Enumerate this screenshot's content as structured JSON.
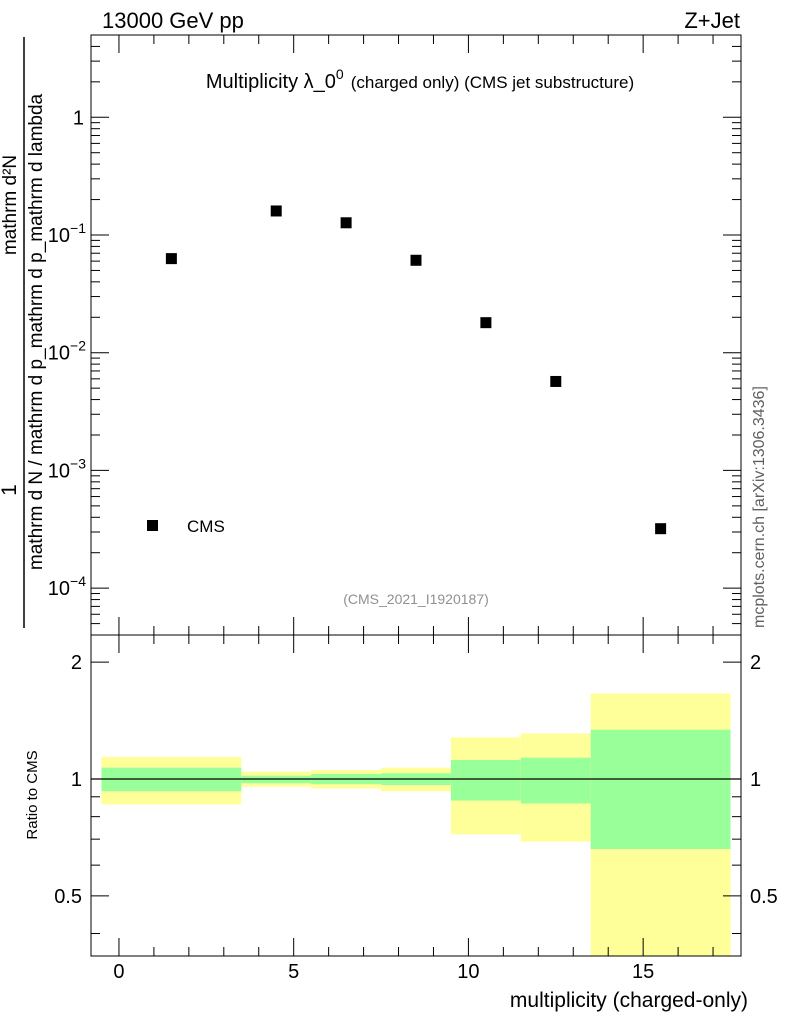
{
  "header": {
    "energy_label": "13000 GeV pp",
    "process_label": "Z+Jet"
  },
  "watermark": "mcplots.cern.ch [arXiv:1306.3436]",
  "chart_data": [
    {
      "type": "scatter",
      "title_main": "Multiplicity λ_0",
      "title_sup": "0",
      "title_tail": "(charged only) (CMS jet substructure)",
      "analysis_id": "(CMS_2021_I1920187)",
      "ylabel_num": "1",
      "ylabel_den": "mathrm d N / mathrm d p_mathrm d p_mathrm d lambda",
      "ylabel_num2": "mathrm d²N",
      "yscale": "log",
      "xlim": [
        -0.8,
        17.8
      ],
      "ylim": [
        4e-05,
        5
      ],
      "yticks": [
        {
          "value": 1,
          "mant": "1",
          "exp": ""
        },
        {
          "value": 0.1,
          "mant": "10",
          "exp": "−1"
        },
        {
          "value": 0.01,
          "mant": "10",
          "exp": "−2"
        },
        {
          "value": 0.001,
          "mant": "10",
          "exp": "−3"
        },
        {
          "value": 0.0001,
          "mant": "10",
          "exp": "−4"
        }
      ],
      "legend": {
        "label": "CMS",
        "placement": "bottom-left"
      },
      "series": [
        {
          "name": "CMS",
          "x": [
            1.5,
            4.5,
            6.5,
            8.5,
            10.5,
            12.5,
            15.5
          ],
          "y": [
            0.063,
            0.16,
            0.127,
            0.061,
            0.018,
            0.0057,
            0.00032
          ]
        }
      ]
    },
    {
      "type": "area",
      "ylabel": "Ratio to CMS",
      "xlabel": "multiplicity (charged-only)",
      "yscale": "log",
      "xlim": [
        -0.8,
        17.8
      ],
      "ylim": [
        0.35,
        2.35
      ],
      "yticks": [
        {
          "value": 0.5,
          "label": "0.5"
        },
        {
          "value": 1,
          "label": "1"
        },
        {
          "value": 2,
          "label": "2"
        }
      ],
      "xticks": [
        0,
        5,
        10,
        15
      ],
      "reference_line": 1,
      "bands": [
        {
          "xlo": -0.5,
          "xhi": 3.5,
          "y1_lo": 0.93,
          "y1_hi": 1.07,
          "y2_lo": 0.86,
          "y2_hi": 1.14
        },
        {
          "xlo": 3.5,
          "xhi": 5.5,
          "y1_lo": 0.975,
          "y1_hi": 1.02,
          "y2_lo": 0.955,
          "y2_hi": 1.045
        },
        {
          "xlo": 5.5,
          "xhi": 7.5,
          "y1_lo": 0.97,
          "y1_hi": 1.03,
          "y2_lo": 0.945,
          "y2_hi": 1.055
        },
        {
          "xlo": 7.5,
          "xhi": 9.5,
          "y1_lo": 0.965,
          "y1_hi": 1.035,
          "y2_lo": 0.93,
          "y2_hi": 1.07
        },
        {
          "xlo": 9.5,
          "xhi": 11.5,
          "y1_lo": 0.88,
          "y1_hi": 1.12,
          "y2_lo": 0.72,
          "y2_hi": 1.28
        },
        {
          "xlo": 11.5,
          "xhi": 13.5,
          "y1_lo": 0.865,
          "y1_hi": 1.135,
          "y2_lo": 0.69,
          "y2_hi": 1.31
        },
        {
          "xlo": 13.5,
          "xhi": 17.5,
          "y1_lo": 0.66,
          "y1_hi": 1.34,
          "y2_lo": 0.35,
          "y2_hi": 1.66
        }
      ],
      "colors": {
        "inner": "#99ff99",
        "outer": "#ffff99"
      }
    }
  ]
}
